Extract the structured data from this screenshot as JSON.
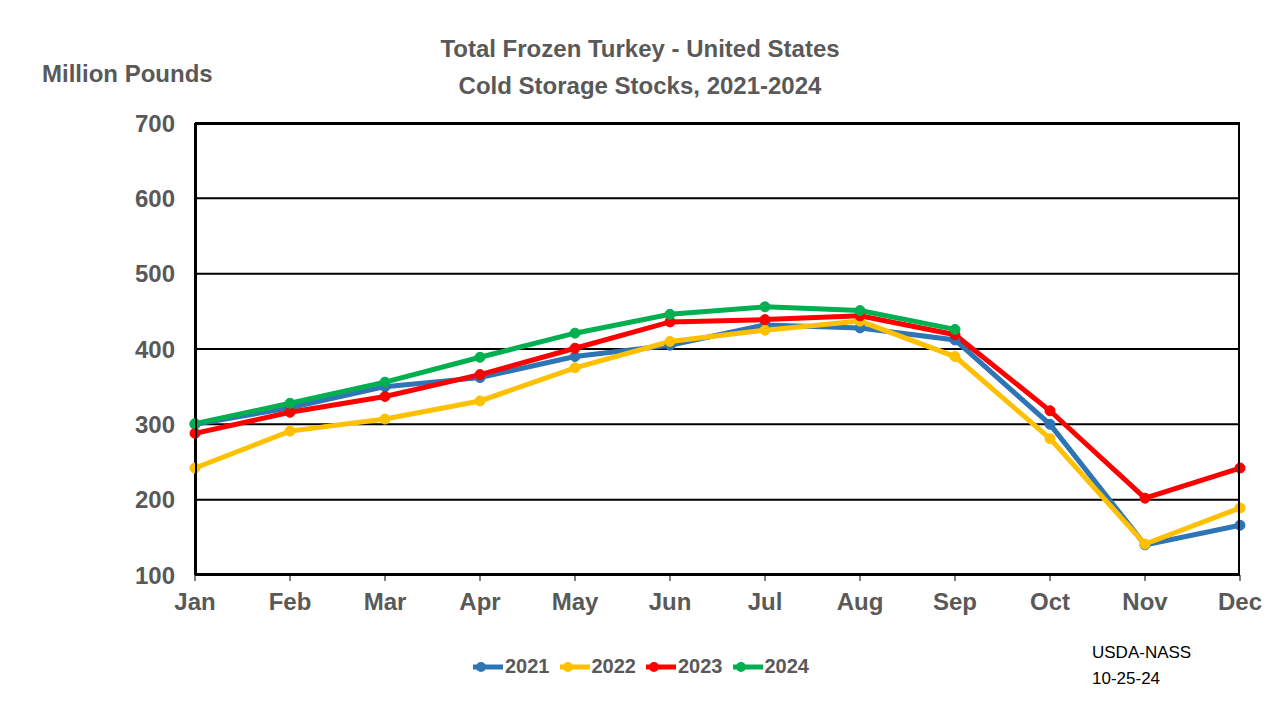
{
  "chart_data": {
    "type": "line",
    "title": "Total Frozen Turkey - United States",
    "subtitle": "Cold Storage Stocks, 2021-2024",
    "y_label": "Million Pounds",
    "annotations": [
      "USDA-NASS",
      "10-25-24"
    ],
    "categories": [
      "Jan",
      "Feb",
      "Mar",
      "Apr",
      "May",
      "Jun",
      "Jul",
      "Aug",
      "Sep",
      "Oct",
      "Nov",
      "Dec"
    ],
    "series": [
      {
        "name": "2021",
        "color": "#2E75B6",
        "values": [
          300,
          322,
          350,
          362,
          390,
          405,
          432,
          428,
          412,
          300,
          140,
          166
        ]
      },
      {
        "name": "2022",
        "color": "#FFC000",
        "values": [
          242,
          291,
          307,
          331,
          375,
          410,
          425,
          437,
          390,
          281,
          141,
          189
        ]
      },
      {
        "name": "2023",
        "color": "#FF0000",
        "values": [
          288,
          316,
          337,
          366,
          401,
          436,
          439,
          444,
          419,
          318,
          202,
          242
        ]
      },
      {
        "name": "2024",
        "color": "#00B050",
        "values": [
          301,
          328,
          356,
          389,
          421,
          446,
          456,
          451,
          426,
          null,
          null,
          null
        ]
      }
    ],
    "ylim": [
      100,
      700
    ],
    "yticks": [
      100,
      200,
      300,
      400,
      500,
      600,
      700
    ],
    "grid": true,
    "legend": "bottom",
    "marker": "circle"
  }
}
